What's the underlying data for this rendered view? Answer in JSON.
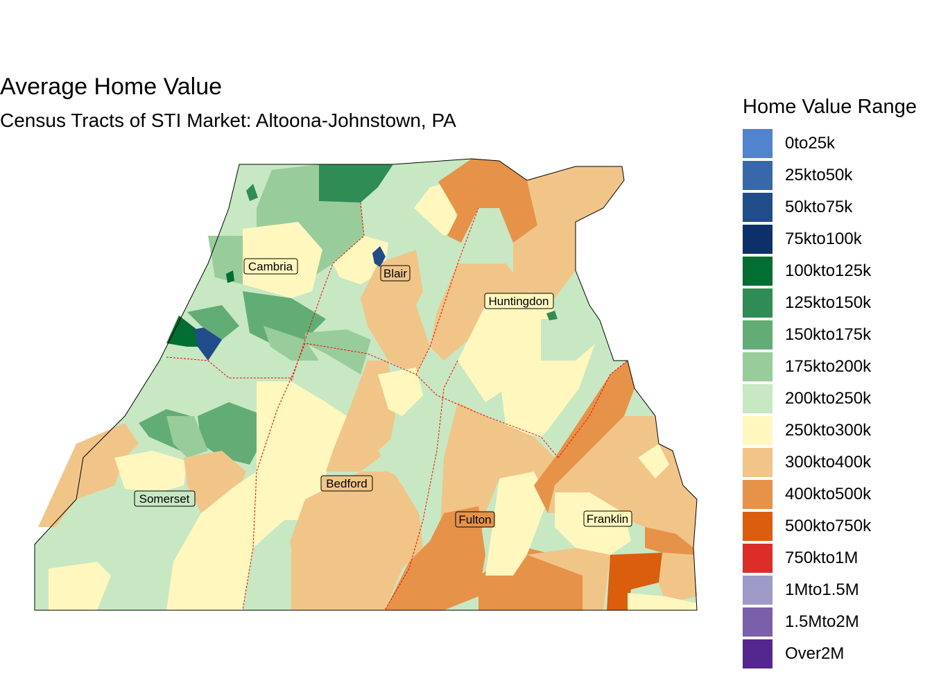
{
  "title": "Average Home Value",
  "subtitle": "Census Tracts of STI Market: Altoona-Johnstown, PA",
  "legend": {
    "title": "Home Value Range",
    "items": [
      {
        "label": "0to25k",
        "color": "#5283cf"
      },
      {
        "label": "25kto50k",
        "color": "#3867aa"
      },
      {
        "label": "50kto75k",
        "color": "#214c8a"
      },
      {
        "label": "75kto100k",
        "color": "#0d2f6b"
      },
      {
        "label": "100kto125k",
        "color": "#006d31"
      },
      {
        "label": "125kto150k",
        "color": "#2f8c55"
      },
      {
        "label": "150kto175k",
        "color": "#62ac76"
      },
      {
        "label": "175kto200k",
        "color": "#99cc9b"
      },
      {
        "label": "200kto250k",
        "color": "#c8e8c4"
      },
      {
        "label": "250kto300k",
        "color": "#fff7bd"
      },
      {
        "label": "300kto400k",
        "color": "#f1c487"
      },
      {
        "label": "400kto500k",
        "color": "#e69349"
      },
      {
        "label": "500kto750k",
        "color": "#da5e0e"
      },
      {
        "label": "750kto1M",
        "color": "#dc2e29"
      },
      {
        "label": "1Mto1.5M",
        "color": "#9e9ac8"
      },
      {
        "label": "1.5Mto2M",
        "color": "#7a60ab"
      },
      {
        "label": "Over2M",
        "color": "#53278f"
      }
    ]
  },
  "counties": [
    {
      "name": "Cambria"
    },
    {
      "name": "Blair"
    },
    {
      "name": "Huntingdon"
    },
    {
      "name": "Somerset"
    },
    {
      "name": "Bedford"
    },
    {
      "name": "Fulton"
    },
    {
      "name": "Franklin"
    }
  ]
}
